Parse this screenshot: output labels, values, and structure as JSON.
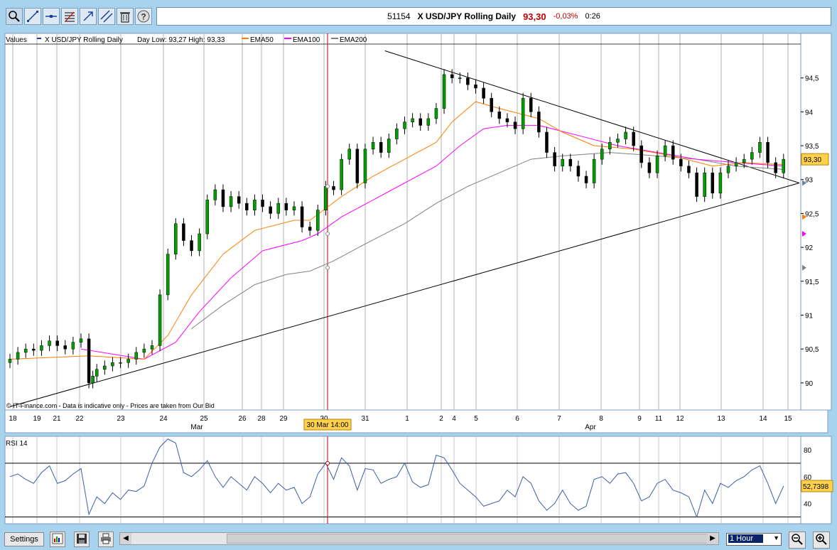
{
  "toolbar": {
    "tools": [
      {
        "name": "zoom-select-tool",
        "icon": "magnifier-icon",
        "active": true
      },
      {
        "name": "line-tool",
        "icon": "trendline-icon"
      },
      {
        "name": "hline-tool",
        "icon": "horizontal-line-icon"
      },
      {
        "name": "fib-tool",
        "icon": "fibonacci-icon"
      },
      {
        "name": "arrow-tool",
        "icon": "arrow-icon"
      },
      {
        "name": "channel-tool",
        "icon": "parallel-line-icon"
      },
      {
        "name": "delete-tool",
        "icon": "trash-icon"
      },
      {
        "name": "help-tool",
        "icon": "help-icon"
      }
    ]
  },
  "header": {
    "code": "51154",
    "instrument": "X USD/JPY Rolling Daily",
    "price": "93,30",
    "change": "-0,03%",
    "time": "0:26",
    "price_color": "#c00000",
    "change_color": "#c00000"
  },
  "legend": {
    "values_label": "Values",
    "series_label": "X USD/JPY Rolling Daily",
    "day_range": "Day Low: 93,27 High: 93,33",
    "ema50_label": "EMA50",
    "ema100_label": "EMA100",
    "ema200_label": "EMA200",
    "ema50_color": "#ff7f00",
    "ema100_color": "#ff00ff",
    "ema200_color": "#808080"
  },
  "disclaimer": "© IT-Finance.com - Data is indicative only - Prices are taken from Our Bid",
  "price_axis": {
    "ticks": [
      "94,5",
      "94",
      "93,5",
      "93",
      "92,5",
      "92",
      "91,5",
      "91",
      "90,5",
      "90"
    ],
    "last_price_label": "93,30"
  },
  "time_axis": {
    "day_labels": [
      "18",
      "19",
      "21",
      "22",
      "23",
      "24",
      "25",
      "26",
      "28",
      "29",
      "30",
      "31",
      "1",
      "2",
      "4",
      "5",
      "6",
      "7",
      "8",
      "9",
      "11",
      "12",
      "13",
      "14",
      "15"
    ],
    "month_labels": [
      "Mar",
      "Apr"
    ],
    "cursor_label": "30 Mar 14:00"
  },
  "rsi": {
    "label": "RSI 14",
    "ticks": [
      "80",
      "60",
      "40"
    ],
    "last_value_label": "52,7398",
    "upper_line": 70,
    "lower_line": 30
  },
  "bottom": {
    "settings_label": "Settings",
    "interval_value": "1 Hour"
  },
  "chart_data": {
    "type": "candlestick",
    "ylim": [
      89.6,
      95.0
    ],
    "rsi_ylim": [
      25,
      90
    ],
    "x_range": [
      0,
      100
    ],
    "candle_color_up": "#00a000",
    "candle_color_down": "#000000",
    "close_series": [
      [
        0,
        90.35
      ],
      [
        1,
        90.45
      ],
      [
        2,
        90.5
      ],
      [
        3,
        90.48
      ],
      [
        4,
        90.55
      ],
      [
        5,
        90.62
      ],
      [
        6,
        90.55
      ],
      [
        7,
        90.5
      ],
      [
        8,
        90.6
      ],
      [
        9,
        90.65
      ],
      [
        10,
        90.0
      ],
      [
        10.5,
        90.1
      ],
      [
        11,
        90.2
      ],
      [
        12,
        90.25
      ],
      [
        13,
        90.3
      ],
      [
        14,
        90.3
      ],
      [
        15,
        90.35
      ],
      [
        16,
        90.45
      ],
      [
        17,
        90.5
      ],
      [
        18,
        90.55
      ],
      [
        19,
        91.3
      ],
      [
        20,
        91.9
      ],
      [
        21,
        92.35
      ],
      [
        22,
        92.1
      ],
      [
        23,
        91.95
      ],
      [
        24,
        92.2
      ],
      [
        25,
        92.7
      ],
      [
        26,
        92.85
      ],
      [
        27,
        92.6
      ],
      [
        28,
        92.75
      ],
      [
        29,
        92.65
      ],
      [
        30,
        92.55
      ],
      [
        31,
        92.7
      ],
      [
        32,
        92.6
      ],
      [
        33,
        92.5
      ],
      [
        34,
        92.65
      ],
      [
        35,
        92.55
      ],
      [
        36,
        92.6
      ],
      [
        37,
        92.3
      ],
      [
        38,
        92.25
      ],
      [
        39,
        92.55
      ],
      [
        40,
        92.9
      ],
      [
        41,
        92.85
      ],
      [
        42,
        93.3
      ],
      [
        43,
        93.45
      ],
      [
        44,
        92.95
      ],
      [
        45,
        93.45
      ],
      [
        46,
        93.55
      ],
      [
        47,
        93.4
      ],
      [
        48,
        93.6
      ],
      [
        49,
        93.75
      ],
      [
        50,
        93.85
      ],
      [
        51,
        93.9
      ],
      [
        52,
        93.8
      ],
      [
        53,
        93.9
      ],
      [
        54,
        94.05
      ],
      [
        55,
        94.55
      ],
      [
        56,
        94.5
      ],
      [
        57,
        94.5
      ],
      [
        58,
        94.4
      ],
      [
        59,
        94.35
      ],
      [
        60,
        94.2
      ],
      [
        61,
        94.0
      ],
      [
        62,
        93.9
      ],
      [
        63,
        93.85
      ],
      [
        64,
        93.75
      ],
      [
        65,
        94.2
      ],
      [
        66,
        94.0
      ],
      [
        67,
        93.7
      ],
      [
        68,
        93.4
      ],
      [
        69,
        93.2
      ],
      [
        70,
        93.3
      ],
      [
        71,
        93.2
      ],
      [
        72,
        93.05
      ],
      [
        73,
        92.95
      ],
      [
        74,
        93.3
      ],
      [
        75,
        93.45
      ],
      [
        76,
        93.55
      ],
      [
        77,
        93.6
      ],
      [
        78,
        93.7
      ],
      [
        79,
        93.5
      ],
      [
        80,
        93.25
      ],
      [
        81,
        93.1
      ],
      [
        82,
        93.35
      ],
      [
        83,
        93.5
      ],
      [
        84,
        93.3
      ],
      [
        85,
        93.2
      ],
      [
        86,
        93.1
      ],
      [
        87,
        92.75
      ],
      [
        88,
        93.1
      ],
      [
        89,
        92.8
      ],
      [
        90,
        93.1
      ],
      [
        91,
        93.2
      ],
      [
        92,
        93.25
      ],
      [
        93,
        93.3
      ],
      [
        94,
        93.4
      ],
      [
        95,
        93.55
      ],
      [
        96,
        93.25
      ],
      [
        97,
        93.1
      ],
      [
        98,
        93.3
      ]
    ],
    "ema50": [
      [
        0,
        90.35
      ],
      [
        10,
        90.4
      ],
      [
        17,
        90.35
      ],
      [
        20,
        90.7
      ],
      [
        23,
        91.3
      ],
      [
        27,
        91.9
      ],
      [
        31,
        92.25
      ],
      [
        36,
        92.4
      ],
      [
        38,
        92.4
      ],
      [
        42,
        92.75
      ],
      [
        46,
        93.05
      ],
      [
        50,
        93.3
      ],
      [
        54,
        93.55
      ],
      [
        56,
        93.85
      ],
      [
        59,
        94.15
      ],
      [
        62,
        94.05
      ],
      [
        67,
        93.9
      ],
      [
        70,
        93.7
      ],
      [
        74,
        93.5
      ],
      [
        79,
        93.45
      ],
      [
        84,
        93.35
      ],
      [
        89,
        93.2
      ],
      [
        93,
        93.25
      ],
      [
        98,
        93.22
      ]
    ],
    "ema100": [
      [
        9,
        90.5
      ],
      [
        17,
        90.35
      ],
      [
        21,
        90.6
      ],
      [
        24,
        91.05
      ],
      [
        28,
        91.55
      ],
      [
        32,
        91.95
      ],
      [
        37,
        92.1
      ],
      [
        39,
        92.2
      ],
      [
        42,
        92.45
      ],
      [
        46,
        92.7
      ],
      [
        50,
        92.95
      ],
      [
        54,
        93.2
      ],
      [
        57,
        93.5
      ],
      [
        60,
        93.75
      ],
      [
        63,
        93.8
      ],
      [
        67,
        93.8
      ],
      [
        72,
        93.65
      ],
      [
        77,
        93.5
      ],
      [
        82,
        93.4
      ],
      [
        87,
        93.3
      ],
      [
        92,
        93.25
      ],
      [
        98,
        93.2
      ]
    ],
    "ema200": [
      [
        23,
        90.8
      ],
      [
        27,
        91.15
      ],
      [
        31,
        91.45
      ],
      [
        35,
        91.6
      ],
      [
        38,
        91.65
      ],
      [
        41,
        91.8
      ],
      [
        45,
        92.05
      ],
      [
        50,
        92.35
      ],
      [
        54,
        92.65
      ],
      [
        58,
        92.9
      ],
      [
        62,
        93.1
      ],
      [
        66,
        93.3
      ],
      [
        70,
        93.35
      ],
      [
        76,
        93.4
      ],
      [
        82,
        93.35
      ],
      [
        87,
        93.3
      ],
      [
        92,
        93.2
      ],
      [
        98,
        93.15
      ]
    ],
    "trendlines": [
      {
        "x1": 0,
        "y1": 89.65,
        "x2": 100,
        "y2": 92.95
      },
      {
        "x1": 47.5,
        "y1": 94.9,
        "x2": 100,
        "y2": 92.95
      }
    ],
    "rsi_series": [
      [
        0,
        60
      ],
      [
        1,
        62
      ],
      [
        2,
        58
      ],
      [
        3,
        55
      ],
      [
        4,
        63
      ],
      [
        5,
        68
      ],
      [
        6,
        55
      ],
      [
        7,
        57
      ],
      [
        8,
        62
      ],
      [
        9,
        66
      ],
      [
        10,
        32
      ],
      [
        11,
        45
      ],
      [
        12,
        40
      ],
      [
        13,
        48
      ],
      [
        14,
        43
      ],
      [
        15,
        50
      ],
      [
        16,
        49
      ],
      [
        17,
        53
      ],
      [
        18,
        70
      ],
      [
        19,
        82
      ],
      [
        20,
        88
      ],
      [
        21,
        85
      ],
      [
        22,
        63
      ],
      [
        23,
        60
      ],
      [
        24,
        65
      ],
      [
        25,
        72
      ],
      [
        26,
        60
      ],
      [
        27,
        52
      ],
      [
        28,
        60
      ],
      [
        29,
        55
      ],
      [
        30,
        50
      ],
      [
        31,
        60
      ],
      [
        32,
        55
      ],
      [
        33,
        48
      ],
      [
        34,
        55
      ],
      [
        35,
        50
      ],
      [
        36,
        52
      ],
      [
        37,
        40
      ],
      [
        38,
        45
      ],
      [
        39,
        62
      ],
      [
        40,
        70
      ],
      [
        41,
        58
      ],
      [
        42,
        74
      ],
      [
        43,
        68
      ],
      [
        44,
        50
      ],
      [
        45,
        66
      ],
      [
        46,
        65
      ],
      [
        47,
        55
      ],
      [
        48,
        58
      ],
      [
        49,
        60
      ],
      [
        50,
        70
      ],
      [
        51,
        56
      ],
      [
        52,
        52
      ],
      [
        53,
        54
      ],
      [
        54,
        76
      ],
      [
        55,
        74
      ],
      [
        56,
        65
      ],
      [
        57,
        55
      ],
      [
        58,
        50
      ],
      [
        59,
        45
      ],
      [
        60,
        38
      ],
      [
        61,
        40
      ],
      [
        62,
        42
      ],
      [
        63,
        50
      ],
      [
        64,
        45
      ],
      [
        65,
        60
      ],
      [
        66,
        55
      ],
      [
        67,
        42
      ],
      [
        68,
        35
      ],
      [
        69,
        40
      ],
      [
        70,
        50
      ],
      [
        71,
        40
      ],
      [
        72,
        35
      ],
      [
        73,
        38
      ],
      [
        74,
        58
      ],
      [
        75,
        60
      ],
      [
        76,
        55
      ],
      [
        77,
        62
      ],
      [
        78,
        63
      ],
      [
        79,
        55
      ],
      [
        80,
        42
      ],
      [
        81,
        45
      ],
      [
        82,
        55
      ],
      [
        83,
        58
      ],
      [
        84,
        50
      ],
      [
        85,
        48
      ],
      [
        86,
        45
      ],
      [
        87,
        30
      ],
      [
        88,
        50
      ],
      [
        89,
        40
      ],
      [
        90,
        55
      ],
      [
        91,
        52
      ],
      [
        92,
        57
      ],
      [
        93,
        60
      ],
      [
        94,
        65
      ],
      [
        95,
        68
      ],
      [
        96,
        55
      ],
      [
        97,
        40
      ],
      [
        98,
        53
      ]
    ]
  }
}
